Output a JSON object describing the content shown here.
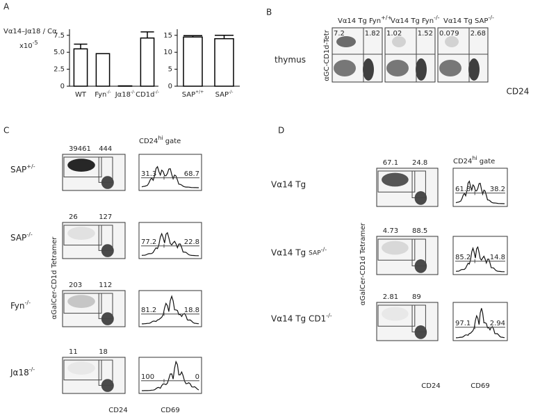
{
  "panel_labels": [
    "A",
    "B",
    "C",
    "D"
  ],
  "chart_data": [
    {
      "type": "bar",
      "ylabel": "Vα14–Jα18 / Cα",
      "yscale_label": "x10",
      "yscale_sup": "-5",
      "categories": [
        "WT",
        "Fyn-/-",
        "Jα18-/-",
        "CD1d-/-"
      ],
      "values": [
        5.5,
        4.8,
        0.05,
        7.1
      ],
      "errors": [
        0.7,
        null,
        null,
        0.9
      ],
      "color": "#ffffff",
      "ylim": [
        0,
        8.4
      ],
      "yticks": [
        0,
        2.5,
        {
          "value": 5,
          "label": "5.0"
        },
        7.5
      ]
    },
    {
      "type": "bar",
      "categories": [
        "SAP+/+",
        "SAP-/-"
      ],
      "values": [
        14.5,
        14.0
      ],
      "errors": [
        0.4,
        1.0
      ],
      "color": "#ffffff",
      "ylim": [
        0,
        16.8
      ],
      "yticks": [
        0,
        5,
        10,
        15
      ]
    }
  ],
  "panel_b": {
    "row_label": "thymus",
    "y_axis": "αGC-CD1d-Tetr",
    "x_axis": "CD24",
    "plots": [
      {
        "title": "Vα14 Tg Fyn",
        "sup": "+/+",
        "upper_left": "7.2",
        "upper_right": "1.82"
      },
      {
        "title": "Vα14 Tg Fyn",
        "sup": "-/-",
        "upper_left": "1.02",
        "upper_right": "1.52"
      },
      {
        "title": "Vα14 Tg SAP",
        "sup": "-/-",
        "upper_left": "0.079",
        "upper_right": "2.68"
      }
    ]
  },
  "panel_c": {
    "y_axis": "αGalCer-CD1d Tetramer",
    "hist_header": {
      "label": "CD24",
      "sup": "hi",
      "rest": "gate"
    },
    "x_axis_dot": "CD24",
    "x_axis_hist": "CD69",
    "rows": [
      {
        "label": "SAP",
        "sup": "+/-",
        "gate_left": "39461",
        "gate_right": "444",
        "hist_left": "31.3",
        "hist_right": "68.7"
      },
      {
        "label": "SAP",
        "sup": "-/-",
        "gate_left": "26",
        "gate_right": "127",
        "hist_left": "77.2",
        "hist_right": "22.8"
      },
      {
        "label": "Fyn",
        "sup": "-/-",
        "gate_left": "203",
        "gate_right": "112",
        "hist_left": "81.2",
        "hist_right": "18.8"
      },
      {
        "label": "Jα18",
        "sup": "-/-",
        "gate_left": "11",
        "gate_right": "18",
        "hist_left": "100",
        "hist_right": "0"
      }
    ]
  },
  "panel_d": {
    "y_axis": "αGalCer-CD1d Tetramer",
    "hist_header": {
      "label": "CD24",
      "sup": "hi",
      "rest": "gate"
    },
    "x_axis_dot": "CD24",
    "x_axis_hist": "CD69",
    "rows": [
      {
        "label": "Vα14 Tg",
        "gate_left": "67.1",
        "gate_right": "24.8",
        "hist_left": "61.8",
        "hist_right": "38.2"
      },
      {
        "label": "Vα14 Tg",
        "extra": "SAP",
        "sup": "-/-",
        "gate_left": "4.73",
        "gate_right": "88.5",
        "hist_left": "85.2",
        "hist_right": "14.8"
      },
      {
        "label": "Vα14 Tg CD1",
        "sup": "-/-",
        "gate_left": "2.81",
        "gate_right": "89",
        "hist_left": "97.1",
        "hist_right": "2.94"
      }
    ]
  }
}
